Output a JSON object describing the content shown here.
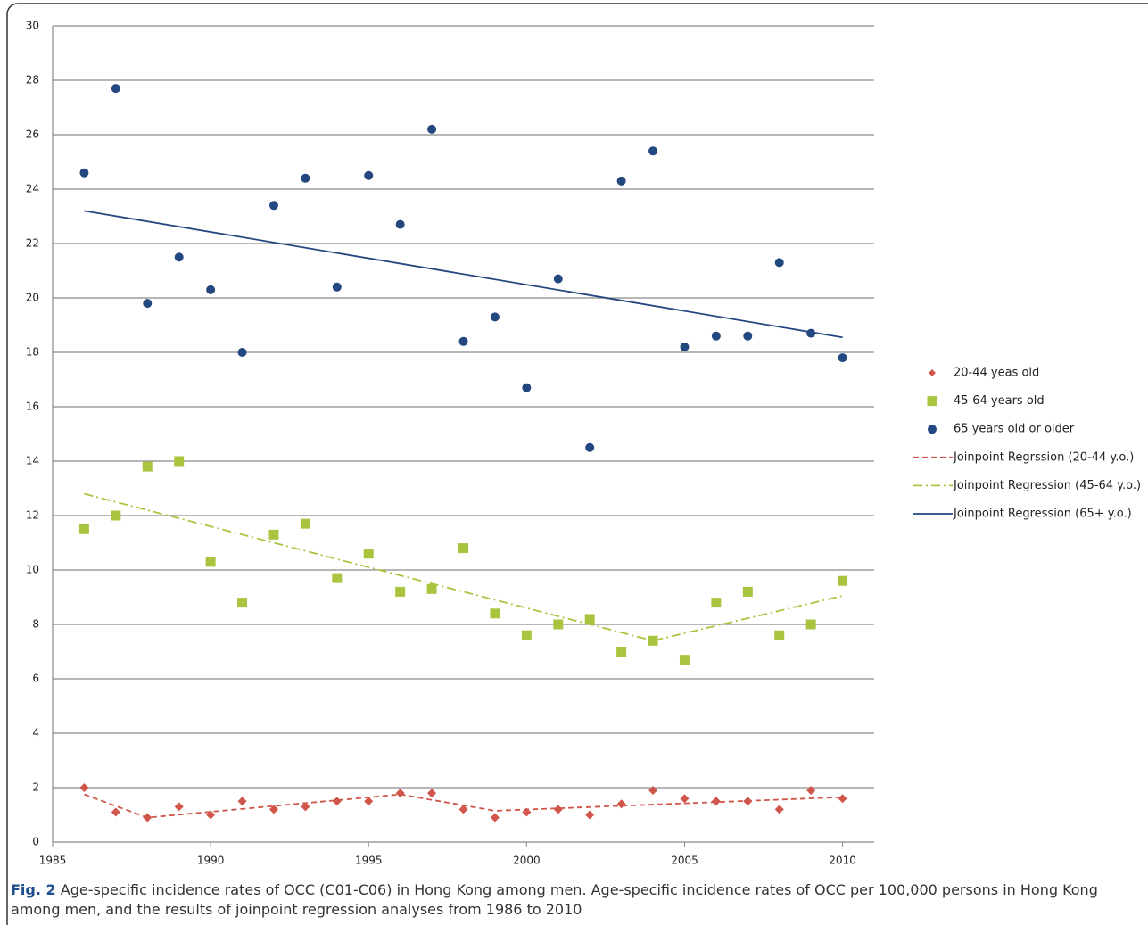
{
  "chart_data": {
    "type": "scatter",
    "xlim": [
      1985,
      2011
    ],
    "xticks": [
      1985,
      1990,
      1995,
      2000,
      2005,
      2010
    ],
    "ylim": [
      0,
      30
    ],
    "yticks": [
      0,
      2,
      4,
      6,
      8,
      10,
      12,
      14,
      16,
      18,
      20,
      22,
      24,
      26,
      28,
      30
    ],
    "grid": true,
    "legend": "right",
    "series": [
      {
        "name": "20-44 yeas old",
        "color": "#d0554a",
        "marker": "diamond",
        "x": [
          1986,
          1987,
          1988,
          1989,
          1990,
          1991,
          1992,
          1993,
          1994,
          1995,
          1996,
          1997,
          1998,
          1999,
          2000,
          2001,
          2002,
          2003,
          2004,
          2005,
          2006,
          2007,
          2008,
          2009,
          2010
        ],
        "values": [
          2.0,
          1.1,
          0.9,
          1.3,
          1.0,
          1.5,
          1.2,
          1.3,
          1.5,
          1.5,
          1.8,
          1.8,
          1.2,
          0.9,
          1.1,
          1.2,
          1.0,
          1.4,
          1.9,
          1.6,
          1.5,
          1.5,
          1.2,
          1.9,
          1.6
        ]
      },
      {
        "name": "45-64 years old",
        "color": "#a9c540",
        "marker": "square",
        "x": [
          1986,
          1987,
          1988,
          1989,
          1990,
          1991,
          1992,
          1993,
          1994,
          1995,
          1996,
          1997,
          1998,
          1999,
          2000,
          2001,
          2002,
          2003,
          2004,
          2005,
          2006,
          2007,
          2008,
          2009,
          2010
        ],
        "values": [
          11.5,
          12.0,
          13.8,
          14.0,
          10.3,
          8.8,
          11.3,
          11.7,
          9.7,
          10.6,
          9.2,
          9.3,
          10.8,
          8.4,
          7.6,
          8.0,
          8.2,
          7.0,
          7.4,
          6.7,
          8.8,
          9.2,
          7.6,
          8.0,
          9.6
        ]
      },
      {
        "name": "65 years old or older",
        "color": "#23477f",
        "marker": "circle",
        "x": [
          1986,
          1987,
          1988,
          1989,
          1990,
          1991,
          1992,
          1993,
          1994,
          1995,
          1996,
          1997,
          1998,
          1999,
          2000,
          2001,
          2002,
          2003,
          2004,
          2005,
          2006,
          2007,
          2008,
          2009,
          2010
        ],
        "values": [
          24.6,
          27.7,
          19.8,
          21.5,
          20.3,
          18.0,
          23.4,
          24.4,
          20.4,
          24.5,
          22.7,
          26.2,
          18.4,
          19.3,
          16.7,
          20.7,
          14.5,
          24.3,
          25.4,
          18.2,
          18.6,
          18.6,
          21.3,
          18.7,
          17.8
        ]
      },
      {
        "name": "Joinpoint Regrssion (20-44 y.o.)",
        "color": "#d0554a",
        "marker": "line",
        "dash": "6 4",
        "x": [
          1986,
          1988,
          1996,
          1999,
          2010
        ],
        "values": [
          1.75,
          0.9,
          1.75,
          1.15,
          1.65
        ]
      },
      {
        "name": "Joinpoint Regression (45-64 y.o.)",
        "color": "#a9c540",
        "marker": "line",
        "dash": "10 4 2 4",
        "x": [
          1986,
          2004,
          2010
        ],
        "values": [
          12.8,
          7.4,
          9.05
        ]
      },
      {
        "name": "Joinpoint Regression (65+ y.o.)",
        "color": "#23477f",
        "marker": "line",
        "dash": "none",
        "x": [
          1986,
          2010
        ],
        "values": [
          23.2,
          18.55
        ]
      }
    ]
  },
  "caption": {
    "label": "Fig. 2",
    "text": "Age-specific incidence rates of OCC (C01-C06) in Hong Kong among men. Age-specific incidence rates of OCC per 100,000 persons in Hong Kong among men, and the results of joinpoint regression analyses from 1986 to 2010"
  }
}
